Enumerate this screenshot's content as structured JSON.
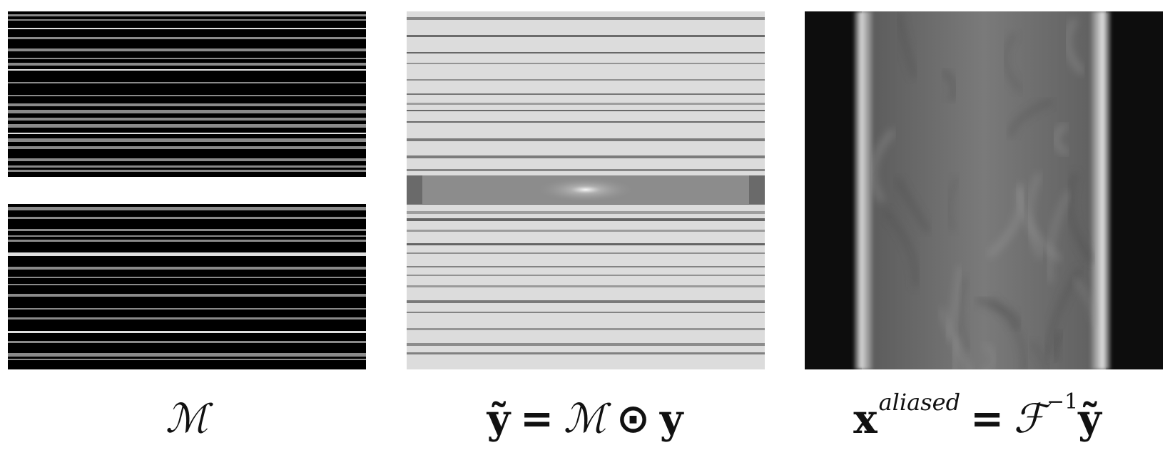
{
  "panels": {
    "mask": {
      "caption": {
        "symbol": "ℳ"
      }
    },
    "kspace": {
      "caption": {
        "lhs": "ỹ",
        "equals": "=",
        "mask": "ℳ",
        "odot": "⊙",
        "y": "y"
      }
    },
    "aliased": {
      "caption": {
        "x": "x",
        "superscript": "aliased",
        "equals": "=",
        "fourier": "ℱ",
        "inverse": "−1",
        "rhs": "ỹ"
      }
    }
  },
  "colors": {
    "mask_background": "#000000",
    "mask_line": "#8a8a8a",
    "mask_bright_line": "#e0e0e0",
    "kspace_background": "#dcdcdc",
    "kspace_line": "#777777",
    "kspace_center_band": "#8c8c8c",
    "aliased_background": "#0d0d0d",
    "aliased_body": "#6e6e6e",
    "aliased_edge": "#d6d6d6"
  },
  "icons": {
    "mask_panel": "sampling-mask-image",
    "kspace_panel": "undersampled-kspace-image",
    "aliased_panel": "aliased-reconstruction-image"
  }
}
